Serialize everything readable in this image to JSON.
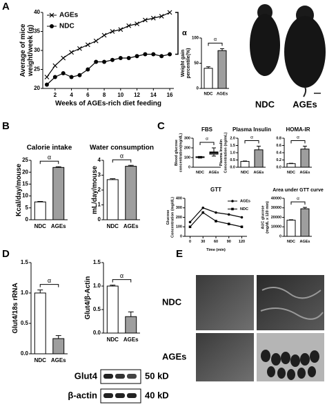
{
  "panel_labels": [
    "A",
    "B",
    "C",
    "D",
    "E"
  ],
  "photo_labels": [
    "NDC",
    "AGEs"
  ],
  "micrograph_labels": [
    "NDC",
    "AGEs"
  ],
  "blot": {
    "rows": [
      {
        "protein": "Glut4",
        "size": "50 kD"
      },
      {
        "protein": "β-actin",
        "size": "40 kD"
      }
    ]
  },
  "chart_data": [
    {
      "type": "line",
      "ylabel": [
        "Average of mice",
        "weight/week (g)"
      ],
      "xlabel": "Weeks of AGEs-rich diet feeding",
      "x": [
        1,
        2,
        3,
        4,
        5,
        6,
        7,
        8,
        9,
        10,
        11,
        12,
        13,
        14,
        15,
        16
      ],
      "series": [
        {
          "name": "AGEs",
          "color": "#000000",
          "marker": "x",
          "values": [
            23,
            26,
            28,
            29.5,
            30.5,
            31.5,
            32.5,
            34,
            35,
            35.5,
            36.5,
            37,
            38,
            38.5,
            39,
            40
          ]
        },
        {
          "name": "NDC",
          "color": "#000000",
          "marker": "o",
          "values": [
            21,
            23,
            24,
            23,
            23.5,
            25,
            27,
            27,
            27.5,
            28,
            28,
            28.5,
            29,
            29,
            28.5,
            29
          ]
        }
      ],
      "xlim": [
        0.5,
        16.5
      ],
      "xticks": [
        2,
        4,
        6,
        8,
        10,
        12,
        14,
        16
      ],
      "ylim": [
        20,
        40
      ],
      "yticks": [
        20,
        25,
        30,
        35,
        40
      ],
      "legend": "top-left",
      "annotation": "α"
    },
    {
      "type": "bar",
      "ylabel": [
        "Weight gain",
        "percentile(%)"
      ],
      "categories": [
        "NDC",
        "AGEs"
      ],
      "values": [
        40,
        75
      ],
      "errors": [
        3,
        4
      ],
      "colors": [
        "#ffffff",
        "#9e9e9e"
      ],
      "ylim": [
        0,
        100
      ],
      "yticks": [
        0,
        50,
        100
      ],
      "annotation": "α"
    },
    {
      "type": "bar",
      "title": "Calorie intake",
      "ylabel": "Kcal/day/mouse",
      "categories": [
        "NDC",
        "AGEs"
      ],
      "values": [
        7.5,
        22
      ],
      "errors": [
        0.2,
        0.3
      ],
      "colors": [
        "#ffffff",
        "#9e9e9e"
      ],
      "ylim": [
        0,
        25
      ],
      "yticks": [
        0,
        5,
        10,
        15,
        20,
        25
      ],
      "annotation": "α"
    },
    {
      "type": "bar",
      "title": "Water consumption",
      "ylabel": "mL/day/mouse",
      "categories": [
        "NDC",
        "AGEs"
      ],
      "values": [
        2.7,
        3.6
      ],
      "errors": [
        0.06,
        0.06
      ],
      "colors": [
        "#ffffff",
        "#9e9e9e"
      ],
      "ylim": [
        0,
        4
      ],
      "yticks": [
        0,
        1,
        2,
        3,
        4
      ],
      "annotation": "α"
    },
    {
      "type": "box",
      "title": "FBS",
      "ylabel": [
        "Blood glucose",
        "concentration(mg/dL)"
      ],
      "categories": [
        "NDC",
        "AGEs"
      ],
      "min": [
        95,
        115
      ],
      "q1": [
        100,
        135
      ],
      "median": [
        103,
        148
      ],
      "q3": [
        108,
        158
      ],
      "max": [
        112,
        200
      ],
      "colors": [
        "#ffffff",
        "#9e9e9e"
      ],
      "ylim": [
        0,
        300
      ],
      "yticks": [
        0,
        100,
        200,
        300
      ],
      "annotation": "α"
    },
    {
      "type": "bar",
      "title": "Plasma Insulin",
      "ylabel": [
        "Plasma Insulin",
        "Concentration (ng/mL)"
      ],
      "categories": [
        "NDC",
        "AGEs"
      ],
      "values": [
        0.4,
        1.2
      ],
      "errors": [
        0.03,
        0.25
      ],
      "colors": [
        "#ffffff",
        "#9e9e9e"
      ],
      "ylim": [
        0,
        2
      ],
      "yticks": [
        {
          "value": 0,
          "label": "0.0"
        },
        {
          "value": 0.5,
          "label": "0.5"
        },
        {
          "value": 1,
          "label": "1.0"
        },
        {
          "value": 1.5,
          "label": "1.5"
        },
        {
          "value": 2,
          "label": "2.0"
        }
      ],
      "annotation": "α"
    },
    {
      "type": "bar",
      "title": "HOMA-IR",
      "categories": [
        "NDC",
        "AGEs"
      ],
      "values": [
        0.1,
        0.5
      ],
      "errors": [
        0.01,
        0.08
      ],
      "colors": [
        "#ffffff",
        "#9e9e9e"
      ],
      "ylim": [
        0,
        0.8
      ],
      "yticks": [
        {
          "value": 0,
          "label": "0.0"
        },
        {
          "value": 0.2,
          "label": "0.2"
        },
        {
          "value": 0.4,
          "label": "0.4"
        },
        {
          "value": 0.6,
          "label": "0.6"
        },
        {
          "value": 0.8,
          "label": "0.8"
        }
      ],
      "annotation": "α"
    },
    {
      "type": "line",
      "title": "GTT",
      "ylabel": [
        "Glucose",
        "Concentration (mg/dL)"
      ],
      "xlabel": "Time (min)",
      "x": [
        0,
        30,
        60,
        90,
        120
      ],
      "series": [
        {
          "name": "AGEs",
          "color": "#000000",
          "marker": "o",
          "values": [
            150,
            300,
            250,
            230,
            200
          ]
        },
        {
          "name": "NDC",
          "color": "#000000",
          "marker": "s",
          "values": [
            100,
            250,
            160,
            130,
            100
          ]
        }
      ],
      "xlim": [
        -12,
        132
      ],
      "xticks": [
        0,
        30,
        60,
        90,
        120
      ],
      "ylim": [
        0,
        400
      ],
      "yticks": [
        0,
        100,
        200,
        300,
        400
      ],
      "legend": "top-right"
    },
    {
      "type": "bar",
      "title": "Area under GTT curve",
      "ylabel": [
        "AUC glucose",
        "(mg/dL x 120 min)"
      ],
      "categories": [
        "NDC",
        "AGEs"
      ],
      "values": [
        17000,
        29000
      ],
      "errors": [
        500,
        1500
      ],
      "colors": [
        "#ffffff",
        "#9e9e9e"
      ],
      "ylim": [
        0,
        40000
      ],
      "yticks": [
        0,
        10000,
        20000,
        30000,
        40000
      ],
      "annotation": "α"
    },
    {
      "type": "bar",
      "ylabel": "Glut4/18s rRNA",
      "categories": [
        "NDC",
        "AGEs"
      ],
      "values": [
        1.0,
        0.25
      ],
      "errors": [
        0.05,
        0.05
      ],
      "colors": [
        "#ffffff",
        "#9e9e9e"
      ],
      "ylim": [
        0,
        1.5
      ],
      "yticks": [
        {
          "value": 0,
          "label": "0.0"
        },
        {
          "value": 0.5,
          "label": "0.5"
        },
        {
          "value": 1,
          "label": "1.0"
        },
        {
          "value": 1.5,
          "label": "1.5"
        }
      ],
      "annotation": "α"
    },
    {
      "type": "bar",
      "ylabel": "Glut4/β-Actin",
      "categories": [
        "NDC",
        "AGEs"
      ],
      "values": [
        1.0,
        0.35
      ],
      "errors": [
        0.02,
        0.1
      ],
      "colors": [
        "#ffffff",
        "#9e9e9e"
      ],
      "ylim": [
        0,
        1.5
      ],
      "yticks": [
        {
          "value": 0,
          "label": "0.0"
        },
        {
          "value": 0.5,
          "label": "0.5"
        },
        {
          "value": 1,
          "label": "1.0"
        },
        {
          "value": 1.5,
          "label": "1.5"
        }
      ],
      "annotation": "α"
    }
  ]
}
